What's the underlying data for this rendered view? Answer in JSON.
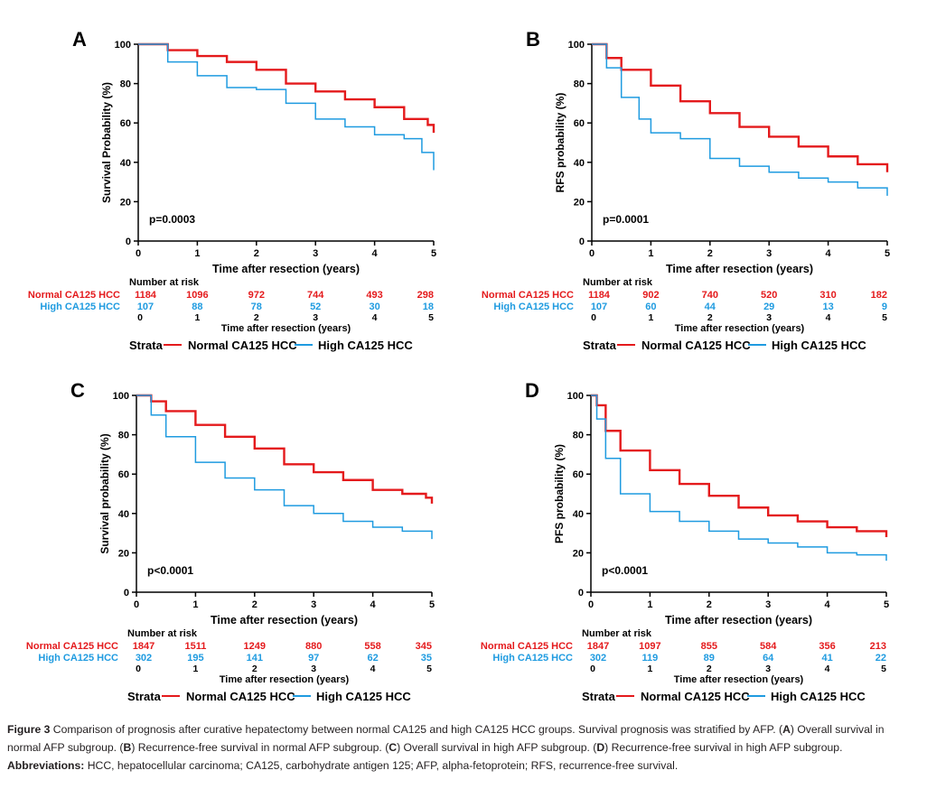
{
  "colors": {
    "normal": "#e41a1c",
    "high": "#1f9be0",
    "axis": "#000000"
  },
  "chart_data": [
    {
      "type": "line",
      "panel": "A",
      "ylabel": "Survival Probability (%)",
      "xlabel": "Time after resection (years)",
      "p_value": "p=0.0003",
      "xlim": [
        0,
        5
      ],
      "ylim": [
        0,
        100
      ],
      "xticks": [
        "0",
        "1",
        "2",
        "3",
        "4",
        "5"
      ],
      "yticks": [
        "0",
        "20",
        "40",
        "60",
        "80",
        "100"
      ],
      "series": [
        {
          "name": "Normal CA125 HCC",
          "x": [
            0,
            0.5,
            1,
            1.5,
            2,
            2.5,
            3,
            3.5,
            4,
            4.5,
            4.9,
            5
          ],
          "y": [
            100,
            97,
            94,
            91,
            87,
            80,
            76,
            72,
            68,
            62,
            59,
            55
          ],
          "at_risk": [
            "1184",
            "1096",
            "972",
            "744",
            "493",
            "298"
          ]
        },
        {
          "name": "High CA125 HCC",
          "x": [
            0,
            0.5,
            1,
            1.5,
            2,
            2.5,
            3,
            3.5,
            4,
            4.5,
            4.8,
            5
          ],
          "y": [
            100,
            91,
            84,
            78,
            77,
            70,
            62,
            58,
            54,
            52,
            45,
            36
          ],
          "at_risk": [
            "107",
            "88",
            "78",
            "52",
            "30",
            "18"
          ]
        }
      ]
    },
    {
      "type": "line",
      "panel": "B",
      "ylabel": "RFS probability (%)",
      "xlabel": "Time after resection (years)",
      "p_value": "p=0.0001",
      "xlim": [
        0,
        5
      ],
      "ylim": [
        0,
        100
      ],
      "xticks": [
        "0",
        "1",
        "2",
        "3",
        "4",
        "5"
      ],
      "yticks": [
        "0",
        "20",
        "40",
        "60",
        "80",
        "100"
      ],
      "series": [
        {
          "name": "Normal CA125 HCC",
          "x": [
            0,
            0.25,
            0.5,
            1,
            1.5,
            2,
            2.5,
            3,
            3.5,
            4,
            4.5,
            5
          ],
          "y": [
            100,
            93,
            87,
            79,
            71,
            65,
            58,
            53,
            48,
            43,
            39,
            35
          ],
          "at_risk": [
            "1184",
            "902",
            "740",
            "520",
            "310",
            "182"
          ]
        },
        {
          "name": "High CA125 HCC",
          "x": [
            0,
            0.25,
            0.5,
            0.8,
            1,
            1.5,
            2,
            2.5,
            3,
            3.5,
            4,
            4.5,
            5
          ],
          "y": [
            100,
            88,
            73,
            62,
            55,
            52,
            42,
            38,
            35,
            32,
            30,
            27,
            23
          ],
          "at_risk": [
            "107",
            "60",
            "44",
            "29",
            "13",
            "9"
          ]
        }
      ]
    },
    {
      "type": "line",
      "panel": "C",
      "ylabel": "Survival probability (%)",
      "xlabel": "Time after resection (years)",
      "p_value": "p<0.0001",
      "xlim": [
        0,
        5
      ],
      "ylim": [
        0,
        100
      ],
      "xticks": [
        "0",
        "1",
        "2",
        "3",
        "4",
        "5"
      ],
      "yticks": [
        "0",
        "20",
        "40",
        "60",
        "80",
        "100"
      ],
      "series": [
        {
          "name": "Normal CA125 HCC",
          "x": [
            0,
            0.25,
            0.5,
            1,
            1.5,
            2,
            2.5,
            3,
            3.5,
            4,
            4.5,
            4.9,
            5
          ],
          "y": [
            100,
            97,
            92,
            85,
            79,
            73,
            65,
            61,
            57,
            52,
            50,
            48,
            45
          ],
          "at_risk": [
            "1847",
            "1511",
            "1249",
            "880",
            "558",
            "345"
          ]
        },
        {
          "name": "High CA125 HCC",
          "x": [
            0,
            0.25,
            0.5,
            1,
            1.5,
            2,
            2.5,
            3,
            3.5,
            4,
            4.5,
            5
          ],
          "y": [
            100,
            90,
            79,
            66,
            58,
            52,
            44,
            40,
            36,
            33,
            31,
            27
          ],
          "at_risk": [
            "302",
            "195",
            "141",
            "97",
            "62",
            "35"
          ]
        }
      ]
    },
    {
      "type": "line",
      "panel": "D",
      "ylabel": "PFS probability (%)",
      "xlabel": "Time after resection (years)",
      "p_value": "p<0.0001",
      "xlim": [
        0,
        5
      ],
      "ylim": [
        0,
        100
      ],
      "xticks": [
        "0",
        "1",
        "2",
        "3",
        "4",
        "5"
      ],
      "yticks": [
        "0",
        "20",
        "40",
        "60",
        "80",
        "100"
      ],
      "series": [
        {
          "name": "Normal CA125 HCC",
          "x": [
            0,
            0.1,
            0.25,
            0.5,
            1,
            1.5,
            2,
            2.5,
            3,
            3.5,
            4,
            4.5,
            5
          ],
          "y": [
            100,
            95,
            82,
            72,
            62,
            55,
            49,
            43,
            39,
            36,
            33,
            31,
            28
          ],
          "at_risk": [
            "1847",
            "1097",
            "855",
            "584",
            "356",
            "213"
          ]
        },
        {
          "name": "High CA125 HCC",
          "x": [
            0,
            0.1,
            0.25,
            0.5,
            1,
            1.5,
            2,
            2.5,
            3,
            3.5,
            4,
            4.5,
            5
          ],
          "y": [
            100,
            88,
            68,
            50,
            41,
            36,
            31,
            27,
            25,
            23,
            20,
            19,
            16
          ],
          "at_risk": [
            "302",
            "119",
            "89",
            "64",
            "41",
            "22"
          ]
        }
      ]
    }
  ],
  "risk_table": {
    "title": "Number at risk",
    "xlabel": "Time after resection (years)",
    "times": [
      "0",
      "1",
      "2",
      "3",
      "4",
      "5"
    ]
  },
  "legend": {
    "title": "Strata",
    "normal": "Normal CA125 HCC",
    "high": "High CA125 HCC"
  },
  "caption": {
    "label": "Figure 3",
    "text1": " Comparison of prognosis after curative hepatectomy between normal CA125 and high CA125 HCC groups. Survival prognosis was stratified by AFP. (",
    "a": "A",
    "text2": ") Overall survival in normal AFP subgroup. (",
    "b": "B",
    "text3": ") Recurrence-free survival in normal AFP subgroup. (",
    "c": "C",
    "text4": ") Overall survival in high AFP subgroup. (",
    "d": "D",
    "text5": ") Recurrence-free survival in high AFP subgroup.",
    "abbr_label": "Abbreviations:",
    "abbr_text": " HCC, hepatocellular carcinoma; CA125, carbohydrate antigen 125; AFP, alpha-fetoprotein; RFS, recurrence-free survival."
  }
}
